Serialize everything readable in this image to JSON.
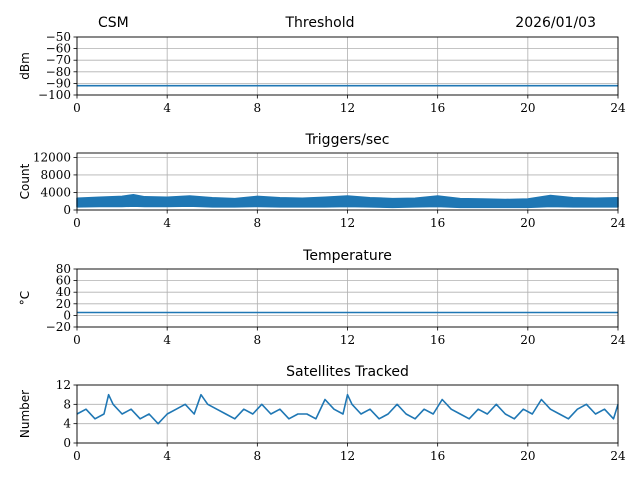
{
  "header": {
    "left": "CSM",
    "center": "Threshold",
    "right": "2026/01/03"
  },
  "chart_data": [
    {
      "type": "line",
      "title": "",
      "ylabel": "dBm",
      "xlim": [
        0,
        24
      ],
      "ylim": [
        -100,
        -50
      ],
      "x_ticks": [
        0,
        4,
        8,
        12,
        16,
        20,
        24
      ],
      "y_ticks": [
        -100,
        -90,
        -80,
        -70,
        -60,
        -50
      ],
      "y_tick_labels": [
        "−100",
        "−90",
        "−80",
        "−70",
        "−60",
        "−50"
      ],
      "grid": true,
      "series": [
        {
          "x": [
            0,
            24
          ],
          "values": [
            -92,
            -92
          ],
          "color": "#1f77b4"
        }
      ]
    },
    {
      "type": "line",
      "title": "Triggers/sec",
      "ylabel": "Count",
      "xlim": [
        0,
        24
      ],
      "ylim": [
        0,
        13000
      ],
      "x_ticks": [
        0,
        4,
        8,
        12,
        16,
        20,
        24
      ],
      "y_ticks": [
        0,
        4000,
        8000,
        12000
      ],
      "y_tick_labels": [
        "0",
        "4000",
        "8000",
        "12000"
      ],
      "grid": true,
      "series": [
        {
          "color": "#1f77b4",
          "x": [
            0,
            1,
            2,
            2.5,
            3,
            4,
            5,
            6,
            7,
            8,
            9,
            10,
            11,
            12,
            13,
            14,
            15,
            16,
            17,
            18,
            19,
            20,
            21,
            22,
            23,
            24
          ],
          "upper": [
            2700,
            2900,
            3100,
            3500,
            3000,
            2900,
            3200,
            2800,
            2600,
            3100,
            2800,
            2700,
            2900,
            3200,
            2800,
            2600,
            2700,
            3200,
            2600,
            2500,
            2400,
            2500,
            3300,
            2800,
            2700,
            2800
          ],
          "lower": [
            700,
            800,
            800,
            900,
            800,
            800,
            900,
            700,
            700,
            800,
            700,
            700,
            700,
            800,
            700,
            600,
            700,
            800,
            600,
            600,
            600,
            600,
            800,
            700,
            700,
            700
          ]
        }
      ]
    },
    {
      "type": "line",
      "title": "Temperature",
      "ylabel": "°C",
      "xlim": [
        0,
        24
      ],
      "ylim": [
        -20,
        80
      ],
      "x_ticks": [
        0,
        4,
        8,
        12,
        16,
        20,
        24
      ],
      "y_ticks": [
        -20,
        0,
        20,
        40,
        60,
        80
      ],
      "y_tick_labels": [
        "−20",
        "0",
        "20",
        "40",
        "60",
        "80"
      ],
      "grid": true,
      "series": [
        {
          "x": [
            0,
            24
          ],
          "values": [
            5,
            5
          ],
          "color": "#1f77b4"
        }
      ]
    },
    {
      "type": "line",
      "title": "Satellites Tracked",
      "ylabel": "Number",
      "xlim": [
        0,
        24
      ],
      "ylim": [
        0,
        12
      ],
      "x_ticks": [
        0,
        4,
        8,
        12,
        16,
        20,
        24
      ],
      "y_ticks": [
        0,
        4,
        8,
        12
      ],
      "y_tick_labels": [
        "0",
        "4",
        "8",
        "12"
      ],
      "grid": true,
      "series": [
        {
          "color": "#1f77b4",
          "x": [
            0,
            0.4,
            0.8,
            1.2,
            1.4,
            1.6,
            2,
            2.4,
            2.8,
            3.2,
            3.6,
            4,
            4.4,
            4.8,
            5.2,
            5.5,
            5.8,
            6.2,
            6.6,
            7,
            7.4,
            7.8,
            8.2,
            8.6,
            9,
            9.4,
            9.8,
            10.2,
            10.6,
            11,
            11.4,
            11.8,
            12,
            12.2,
            12.6,
            13,
            13.4,
            13.8,
            14.2,
            14.6,
            15,
            15.4,
            15.8,
            16.2,
            16.6,
            17,
            17.4,
            17.8,
            18.2,
            18.6,
            19,
            19.4,
            19.8,
            20.2,
            20.6,
            21,
            21.4,
            21.8,
            22.2,
            22.6,
            23,
            23.4,
            23.8,
            24
          ],
          "values": [
            6,
            7,
            5,
            6,
            10,
            8,
            6,
            7,
            5,
            6,
            4,
            6,
            7,
            8,
            6,
            10,
            8,
            7,
            6,
            5,
            7,
            6,
            8,
            6,
            7,
            5,
            6,
            6,
            5,
            9,
            7,
            6,
            10,
            8,
            6,
            7,
            5,
            6,
            8,
            6,
            5,
            7,
            6,
            9,
            7,
            6,
            5,
            7,
            6,
            8,
            6,
            5,
            7,
            6,
            9,
            7,
            6,
            5,
            7,
            8,
            6,
            7,
            5,
            8
          ]
        }
      ]
    }
  ]
}
